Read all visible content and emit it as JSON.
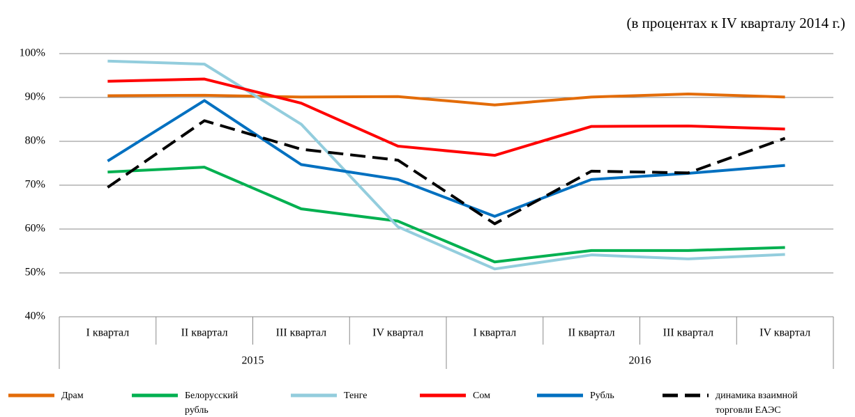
{
  "chart_data": {
    "type": "line",
    "subtitle": "(в процентах к IV кварталу 2014 г.)",
    "categories": [
      "I квартал",
      "II квартал",
      "III квартал",
      "IV квартал",
      "I квартал",
      "II квартал",
      "III квартал",
      "IV квартал"
    ],
    "groups": [
      "2015",
      "2016"
    ],
    "series": [
      {
        "name": "Драм",
        "color": "#e36c09",
        "values": [
          90.4,
          90.5,
          90.1,
          90.2,
          88.3,
          90.1,
          90.8,
          90.1
        ]
      },
      {
        "name": "Белорусский рубль",
        "color": "#00b050",
        "values": [
          73.0,
          74.1,
          64.6,
          61.8,
          52.5,
          55.1,
          55.1,
          55.8
        ]
      },
      {
        "name": "Тенге",
        "color": "#93cddd",
        "values": [
          98.3,
          97.6,
          83.9,
          60.5,
          50.9,
          54.1,
          53.2,
          54.2
        ]
      },
      {
        "name": "Сом",
        "color": "#ff0000",
        "values": [
          93.7,
          94.2,
          88.7,
          78.9,
          76.8,
          83.4,
          83.5,
          82.8
        ]
      },
      {
        "name": "Рубль",
        "color": "#0070c0",
        "values": [
          75.5,
          89.3,
          74.7,
          71.3,
          62.9,
          71.3,
          72.7,
          74.5
        ]
      },
      {
        "name": "динамика взаимной торговли ЕАЭС",
        "color": "#000000",
        "dashed": true,
        "values": [
          69.5,
          84.7,
          78.2,
          75.7,
          61.2,
          73.2,
          72.8,
          80.7
        ]
      }
    ],
    "ylim": [
      40,
      100
    ],
    "yticks": [
      {
        "value": 40,
        "label": "40%"
      },
      {
        "value": 50,
        "label": "50%"
      },
      {
        "value": 60,
        "label": "60%"
      },
      {
        "value": 70,
        "label": "70%"
      },
      {
        "value": 80,
        "label": "80%"
      },
      {
        "value": 90,
        "label": "90%"
      },
      {
        "value": 100,
        "label": "100%"
      }
    ],
    "grid": true
  }
}
